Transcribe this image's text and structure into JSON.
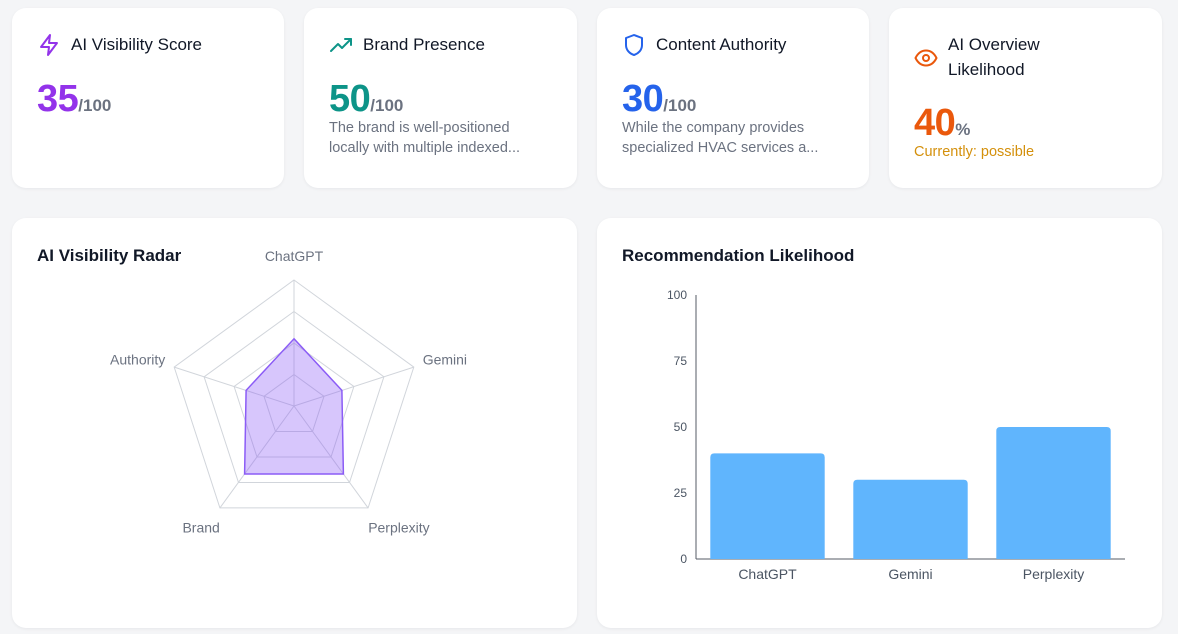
{
  "cards": [
    {
      "title_lines": [
        "AI Visibility Score"
      ],
      "icon": "lightning-icon",
      "value": "35",
      "suffix": "/100",
      "color": "#9333ea",
      "desc_lines": [],
      "status": ""
    },
    {
      "title_lines": [
        "Brand Presence"
      ],
      "icon": "trending-up-icon",
      "value": "50",
      "suffix": "/100",
      "color": "#0d9488",
      "desc_lines": [
        "The brand is well-positioned",
        "locally with multiple indexed..."
      ],
      "status": ""
    },
    {
      "title_lines": [
        "Content Authority"
      ],
      "icon": "shield-icon",
      "value": "30",
      "suffix": "/100",
      "color": "#2563eb",
      "desc_lines": [
        "While the company provides",
        "specialized HVAC services a..."
      ],
      "status": ""
    },
    {
      "title_lines": [
        "AI Overview",
        "Likelihood"
      ],
      "icon": "eye-icon",
      "value": "40",
      "suffix": "%",
      "color": "#ea580c",
      "desc_lines": [],
      "status": "Currently: possible"
    }
  ],
  "chart_data": [
    {
      "type": "radar",
      "title": "AI Visibility Radar",
      "axes": [
        "ChatGPT",
        "Gemini",
        "Perplexity",
        "Brand",
        "Authority"
      ],
      "values": [
        40,
        30,
        50,
        50,
        30
      ],
      "rmax": 75,
      "rings": 4,
      "fill_color": "#8b5cf6"
    },
    {
      "type": "bar",
      "title": "Recommendation Likelihood",
      "categories": [
        "ChatGPT",
        "Gemini",
        "Perplexity"
      ],
      "values": [
        40,
        30,
        50
      ],
      "ylim": [
        0,
        100
      ],
      "yticks": [
        0,
        25,
        50,
        75,
        100
      ],
      "bar_color": "#60b5fd"
    }
  ]
}
